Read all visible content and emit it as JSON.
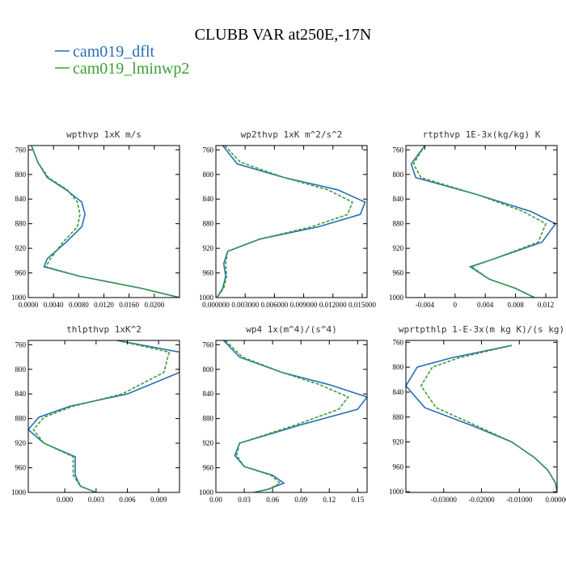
{
  "figure": {
    "title": "CLUBB VAR at250E,-17N",
    "colors": {
      "dflt": "#2a6fb5",
      "lminwp2": "#3aa033"
    }
  },
  "legend": {
    "position": "top-left",
    "items": [
      {
        "key": "dflt",
        "label": "cam019_dflt",
        "style": "solid"
      },
      {
        "key": "lminwp2",
        "label": "cam019_lminwp2",
        "style": "dashed"
      }
    ]
  },
  "chart_data": [
    {
      "type": "line",
      "title": "wpthvp  1xK m/s",
      "xlim": [
        0,
        0.024
      ],
      "xticks": [
        0.0,
        0.004,
        0.008,
        0.012,
        0.016,
        0.02
      ],
      "xtick_labels": [
        "0.0000",
        "0.0040",
        "0.0080",
        "0.0120",
        "0.0160",
        "0.0200"
      ],
      "ylim": [
        760,
        1000
      ],
      "yticks": [
        760,
        800,
        840,
        880,
        920,
        960,
        1000
      ],
      "series": [
        {
          "key": "dflt",
          "x": [
            0.0005,
            0.0015,
            0.003,
            0.006,
            0.0085,
            0.009,
            0.0085,
            0.006,
            0.003,
            0.0025,
            0.008,
            0.018,
            0.024
          ],
          "y": [
            753,
            780,
            805,
            825,
            845,
            865,
            885,
            910,
            937,
            950,
            965,
            985,
            1000
          ]
        },
        {
          "key": "lminwp2",
          "x": [
            0.0005,
            0.0015,
            0.0032,
            0.0062,
            0.0078,
            0.0082,
            0.0078,
            0.0055,
            0.0035,
            0.0028,
            0.008,
            0.018,
            0.024
          ],
          "y": [
            753,
            780,
            805,
            825,
            845,
            865,
            885,
            910,
            937,
            950,
            965,
            985,
            1000
          ]
        }
      ]
    },
    {
      "type": "line",
      "title": "wp2thvp  1xK m^2/s^2",
      "xlim": [
        0,
        0.0155
      ],
      "xticks": [
        0.0,
        0.003,
        0.006,
        0.009,
        0.012,
        0.015
      ],
      "xtick_labels": [
        "0.000000",
        "0.003000",
        "0.006000",
        "0.009000",
        "0.012000",
        "0.015000"
      ],
      "ylim": [
        760,
        1000
      ],
      "yticks": [
        760,
        800,
        840,
        880,
        920,
        960,
        1000
      ],
      "series": [
        {
          "key": "dflt",
          "x": [
            0.0007,
            0.0022,
            0.007,
            0.0125,
            0.0153,
            0.0148,
            0.0105,
            0.0045,
            0.0012,
            0.0008,
            0.001,
            0.0007,
            0.0001
          ],
          "y": [
            753,
            783,
            805,
            825,
            845,
            865,
            885,
            905,
            925,
            945,
            965,
            985,
            1000
          ]
        },
        {
          "key": "lminwp2",
          "x": [
            0.0009,
            0.0025,
            0.007,
            0.0115,
            0.014,
            0.0135,
            0.0098,
            0.0045,
            0.0012,
            0.001,
            0.0011,
            0.0008,
            0.0001
          ],
          "y": [
            753,
            780,
            805,
            825,
            845,
            865,
            885,
            905,
            925,
            945,
            965,
            985,
            1000
          ]
        }
      ]
    },
    {
      "type": "line",
      "title": "rtpthvp  1E-3x(kg/kg) K",
      "xlim": [
        -0.0065,
        0.0135
      ],
      "xticks": [
        -0.004,
        0.0,
        0.004,
        0.008,
        0.012
      ],
      "xtick_labels": [
        "-0.004",
        "0",
        "0.004",
        "0.008",
        "0.012"
      ],
      "ylim": [
        760,
        1000
      ],
      "yticks": [
        760,
        800,
        840,
        880,
        920,
        960,
        1000
      ],
      "series": [
        {
          "key": "dflt",
          "x": [
            -0.004,
            -0.0058,
            -0.0052,
            0.003,
            0.01,
            0.0133,
            0.0115,
            0.0045,
            0.002,
            0.0045,
            0.008,
            0.0105
          ],
          "y": [
            753,
            783,
            805,
            833,
            860,
            880,
            910,
            940,
            950,
            970,
            985,
            1000
          ]
        },
        {
          "key": "lminwp2",
          "x": [
            -0.004,
            -0.0055,
            -0.0045,
            0.003,
            0.009,
            0.012,
            0.011,
            0.0045,
            0.0022,
            0.0045,
            0.008,
            0.0105
          ],
          "y": [
            753,
            783,
            805,
            833,
            860,
            880,
            910,
            940,
            950,
            970,
            985,
            1000
          ]
        }
      ]
    },
    {
      "type": "line",
      "title": "thlpthvp  1xK^2",
      "xlim": [
        -0.0035,
        0.011
      ],
      "xticks": [
        0.0,
        0.003,
        0.006,
        0.009
      ],
      "xtick_labels": [
        "0.000",
        "0.003",
        "0.006",
        "0.009"
      ],
      "ylim": [
        760,
        1000
      ],
      "yticks": [
        760,
        800,
        840,
        880,
        920,
        960,
        1000
      ],
      "series": [
        {
          "key": "dflt",
          "x": [
            0.005,
            0.011,
            0.011,
            0.006,
            0.0005,
            -0.0025,
            -0.0035,
            -0.002,
            0.001,
            0.001,
            0.001,
            0.0015,
            0.003
          ],
          "y": [
            753,
            772,
            805,
            840,
            860,
            878,
            898,
            920,
            942,
            960,
            972,
            990,
            1000
          ]
        },
        {
          "key": "lminwp2",
          "x": [
            0.005,
            0.01,
            0.0095,
            0.0055,
            0.0008,
            -0.002,
            -0.003,
            -0.002,
            0.0008,
            0.0008,
            0.0008,
            0.0015,
            0.003
          ],
          "y": [
            753,
            772,
            805,
            840,
            860,
            878,
            898,
            920,
            942,
            960,
            972,
            990,
            1000
          ]
        }
      ]
    },
    {
      "type": "line",
      "title": "wp4  1x(m^4)/(s^4)",
      "xlim": [
        0,
        0.16
      ],
      "xticks": [
        0.0,
        0.03,
        0.06,
        0.09,
        0.12,
        0.15
      ],
      "xtick_labels": [
        "0.00",
        "0.03",
        "0.06",
        "0.09",
        "0.12",
        "0.15"
      ],
      "ylim": [
        760,
        1000
      ],
      "yticks": [
        760,
        800,
        840,
        880,
        920,
        960,
        1000
      ],
      "series": [
        {
          "key": "dflt",
          "x": [
            0.008,
            0.025,
            0.07,
            0.12,
            0.16,
            0.15,
            0.09,
            0.025,
            0.02,
            0.03,
            0.06,
            0.072,
            0.055,
            0.04
          ],
          "y": [
            753,
            780,
            805,
            825,
            845,
            865,
            890,
            920,
            940,
            958,
            972,
            985,
            995,
            1000
          ]
        },
        {
          "key": "lminwp2",
          "x": [
            0.01,
            0.028,
            0.07,
            0.11,
            0.14,
            0.13,
            0.085,
            0.025,
            0.022,
            0.03,
            0.058,
            0.068,
            0.055,
            0.04
          ],
          "y": [
            753,
            780,
            805,
            825,
            845,
            865,
            890,
            920,
            940,
            958,
            972,
            985,
            995,
            1000
          ]
        }
      ]
    },
    {
      "type": "line",
      "title": "wprtpthlp  1-E-3x(m kg K)/(s kg)",
      "xlim": [
        -0.04,
        0.0
      ],
      "xticks": [
        -0.03,
        -0.02,
        -0.01,
        0.0
      ],
      "xtick_labels": [
        "-0.03000",
        "-0.02000",
        "-0.01000",
        "0.00000"
      ],
      "ylim": [
        760,
        1000
      ],
      "yticks": [
        760,
        800,
        840,
        880,
        920,
        960,
        1000
      ],
      "series": [
        {
          "key": "dflt",
          "x": [
            -0.012,
            -0.028,
            -0.037,
            -0.04,
            -0.035,
            -0.022,
            -0.012,
            -0.006,
            -0.0025,
            -0.0005,
            0.0
          ],
          "y": [
            765,
            785,
            800,
            830,
            865,
            895,
            920,
            945,
            965,
            985,
            1000
          ]
        },
        {
          "key": "lminwp2",
          "x": [
            -0.012,
            -0.026,
            -0.033,
            -0.036,
            -0.032,
            -0.021,
            -0.012,
            -0.006,
            -0.0025,
            -0.0005,
            0.0
          ],
          "y": [
            765,
            785,
            800,
            830,
            865,
            895,
            920,
            945,
            965,
            985,
            1000
          ]
        }
      ]
    }
  ]
}
